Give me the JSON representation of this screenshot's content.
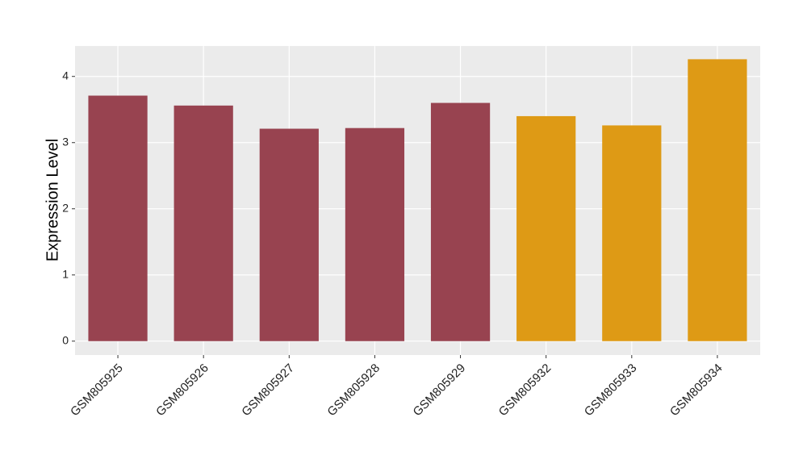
{
  "chart_data": {
    "type": "bar",
    "y_label": "Expression Level",
    "categories": [
      "GSM805925",
      "GSM805926",
      "GSM805927",
      "GSM805928",
      "GSM805929",
      "GSM805932",
      "GSM805933",
      "GSM805934"
    ],
    "values": [
      3.71,
      3.56,
      3.21,
      3.22,
      3.6,
      3.4,
      3.26,
      4.26
    ],
    "colors": [
      "#984350",
      "#984350",
      "#984350",
      "#984350",
      "#984350",
      "#de9a15",
      "#de9a15",
      "#de9a15"
    ],
    "ylim": [
      -0.21,
      4.46
    ],
    "yticks": [
      0,
      1,
      2,
      3,
      4
    ],
    "grid": true
  }
}
